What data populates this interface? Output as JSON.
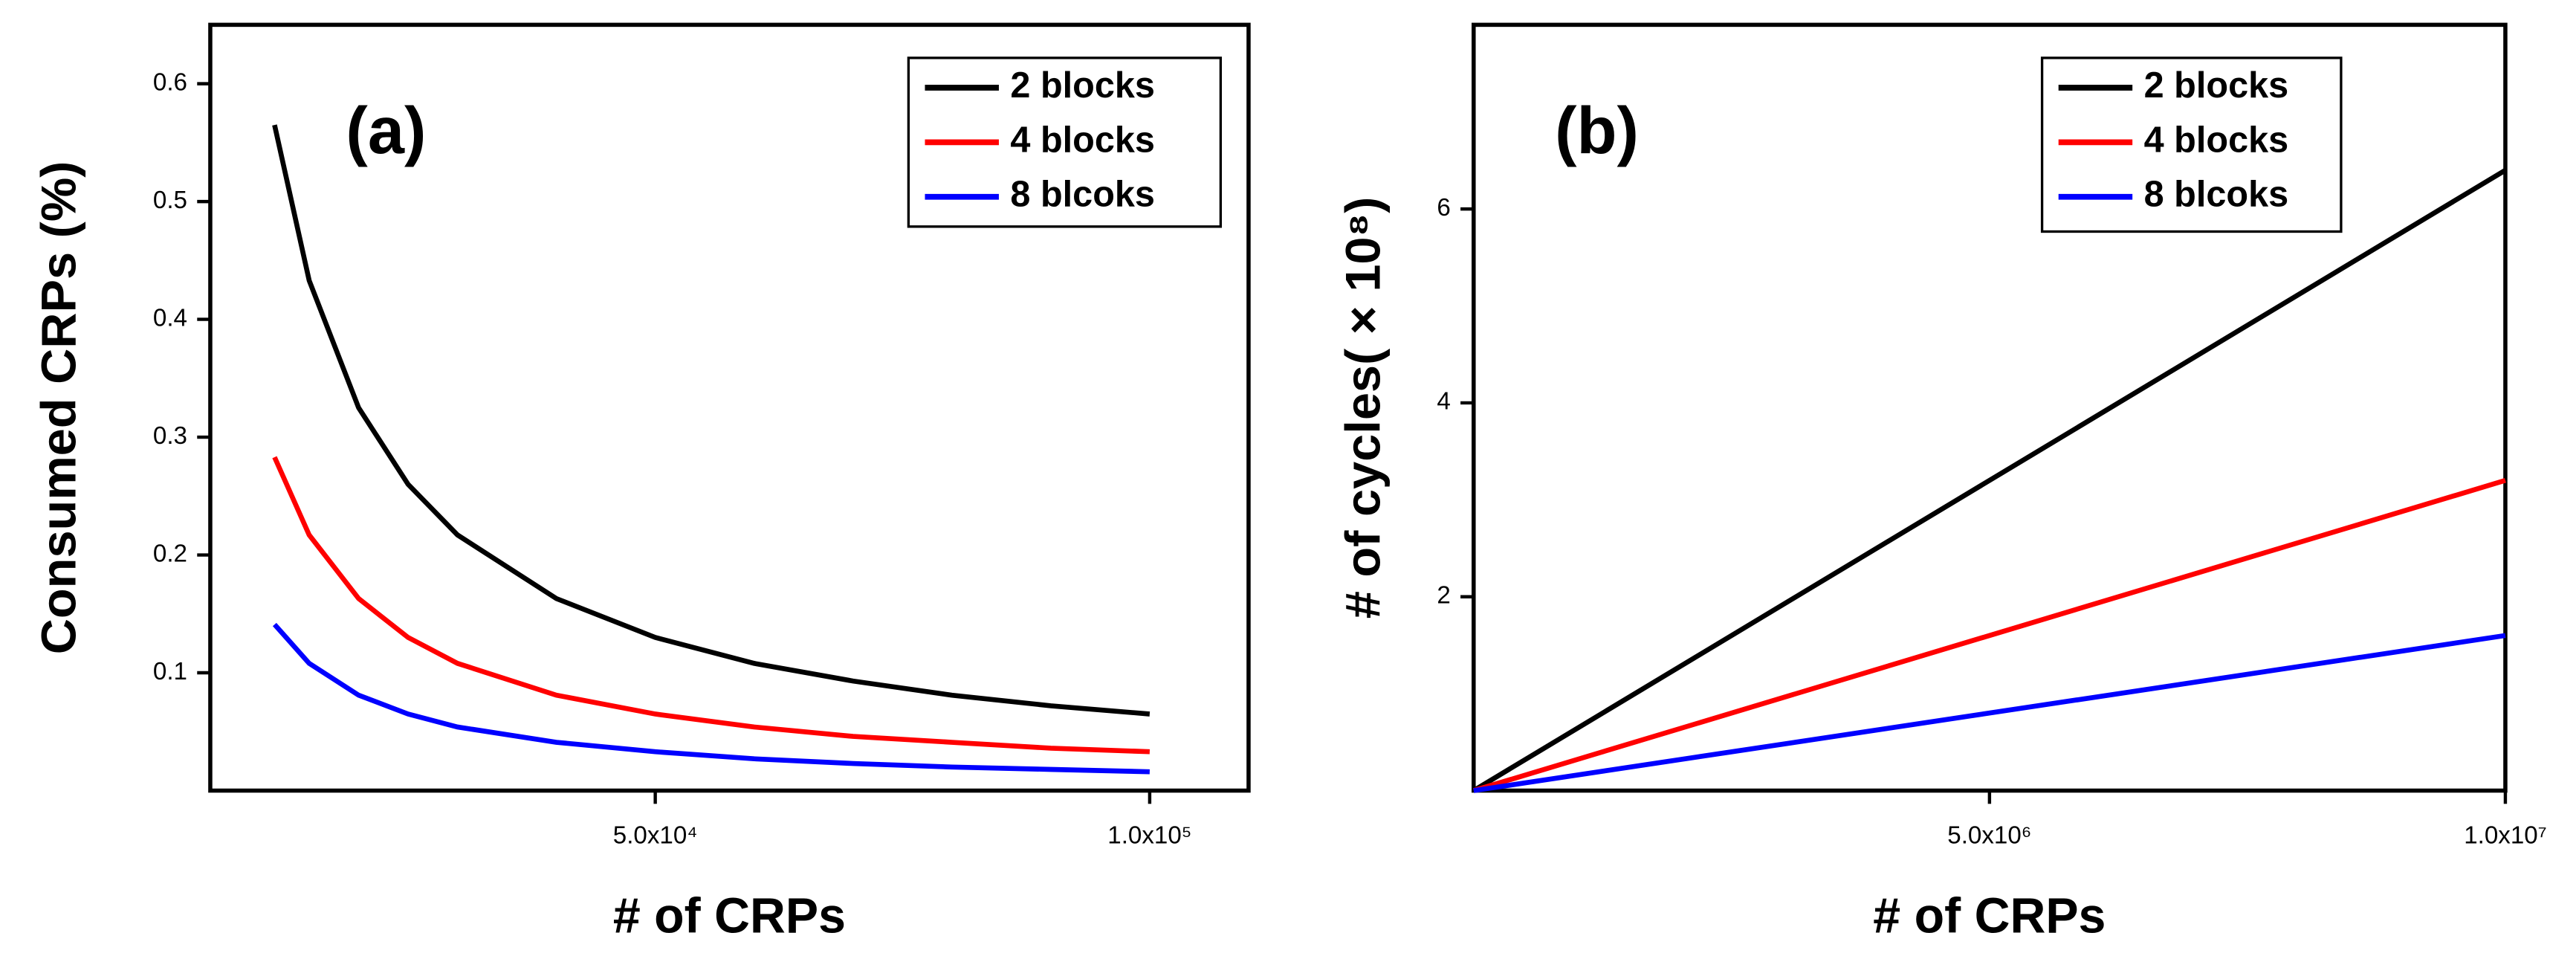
{
  "chart_data": [
    {
      "type": "line",
      "title": "(a)",
      "x_label": "# of CRPs",
      "y_label": "Consumed CRPs (%)",
      "x": [
        11500,
        15000,
        20000,
        25000,
        30000,
        40000,
        50000,
        60000,
        70000,
        80000,
        90000,
        100000
      ],
      "series": [
        {
          "name": "2 blocks",
          "color": "#000000",
          "values": [
            0.565,
            0.433,
            0.325,
            0.26,
            0.217,
            0.163,
            0.13,
            0.108,
            0.093,
            0.081,
            0.072,
            0.065
          ]
        },
        {
          "name": "4 blocks",
          "color": "#ff0000",
          "values": [
            0.283,
            0.217,
            0.163,
            0.13,
            0.108,
            0.081,
            0.065,
            0.054,
            0.046,
            0.041,
            0.036,
            0.033
          ]
        },
        {
          "name": "8 blcoks",
          "color": "#0000ff",
          "values": [
            0.141,
            0.108,
            0.081,
            0.065,
            0.054,
            0.041,
            0.033,
            0.027,
            0.023,
            0.02,
            0.018,
            0.016
          ]
        }
      ],
      "xlim": [
        5000,
        110000
      ],
      "ylim": [
        0,
        0.65
      ],
      "xticks": [
        {
          "value": 50000,
          "label": "5.0x10⁴"
        },
        {
          "value": 100000,
          "label": "1.0x10⁵"
        }
      ],
      "yticks": [
        0.1,
        0.2,
        0.3,
        0.4,
        0.5,
        0.6
      ],
      "legend": "upper right"
    },
    {
      "type": "line",
      "title": "(b)",
      "x_label": "# of CRPs",
      "y_label": "# of cycles( × 10⁸)",
      "x": [
        0,
        10000000
      ],
      "series": [
        {
          "name": "2 blocks",
          "color": "#000000",
          "values": [
            0,
            6.4
          ]
        },
        {
          "name": "4 blocks",
          "color": "#ff0000",
          "values": [
            0,
            3.2
          ]
        },
        {
          "name": "8 blcoks",
          "color": "#0000ff",
          "values": [
            0,
            1.6
          ]
        }
      ],
      "xlim": [
        0,
        10000000
      ],
      "ylim": [
        0,
        7.9
      ],
      "xticks": [
        {
          "value": 5000000,
          "label": "5.0x10⁶"
        },
        {
          "value": 10000000,
          "label": "1.0x10⁷"
        }
      ],
      "yticks": [
        2,
        4,
        6
      ],
      "legend": "upper right"
    }
  ]
}
